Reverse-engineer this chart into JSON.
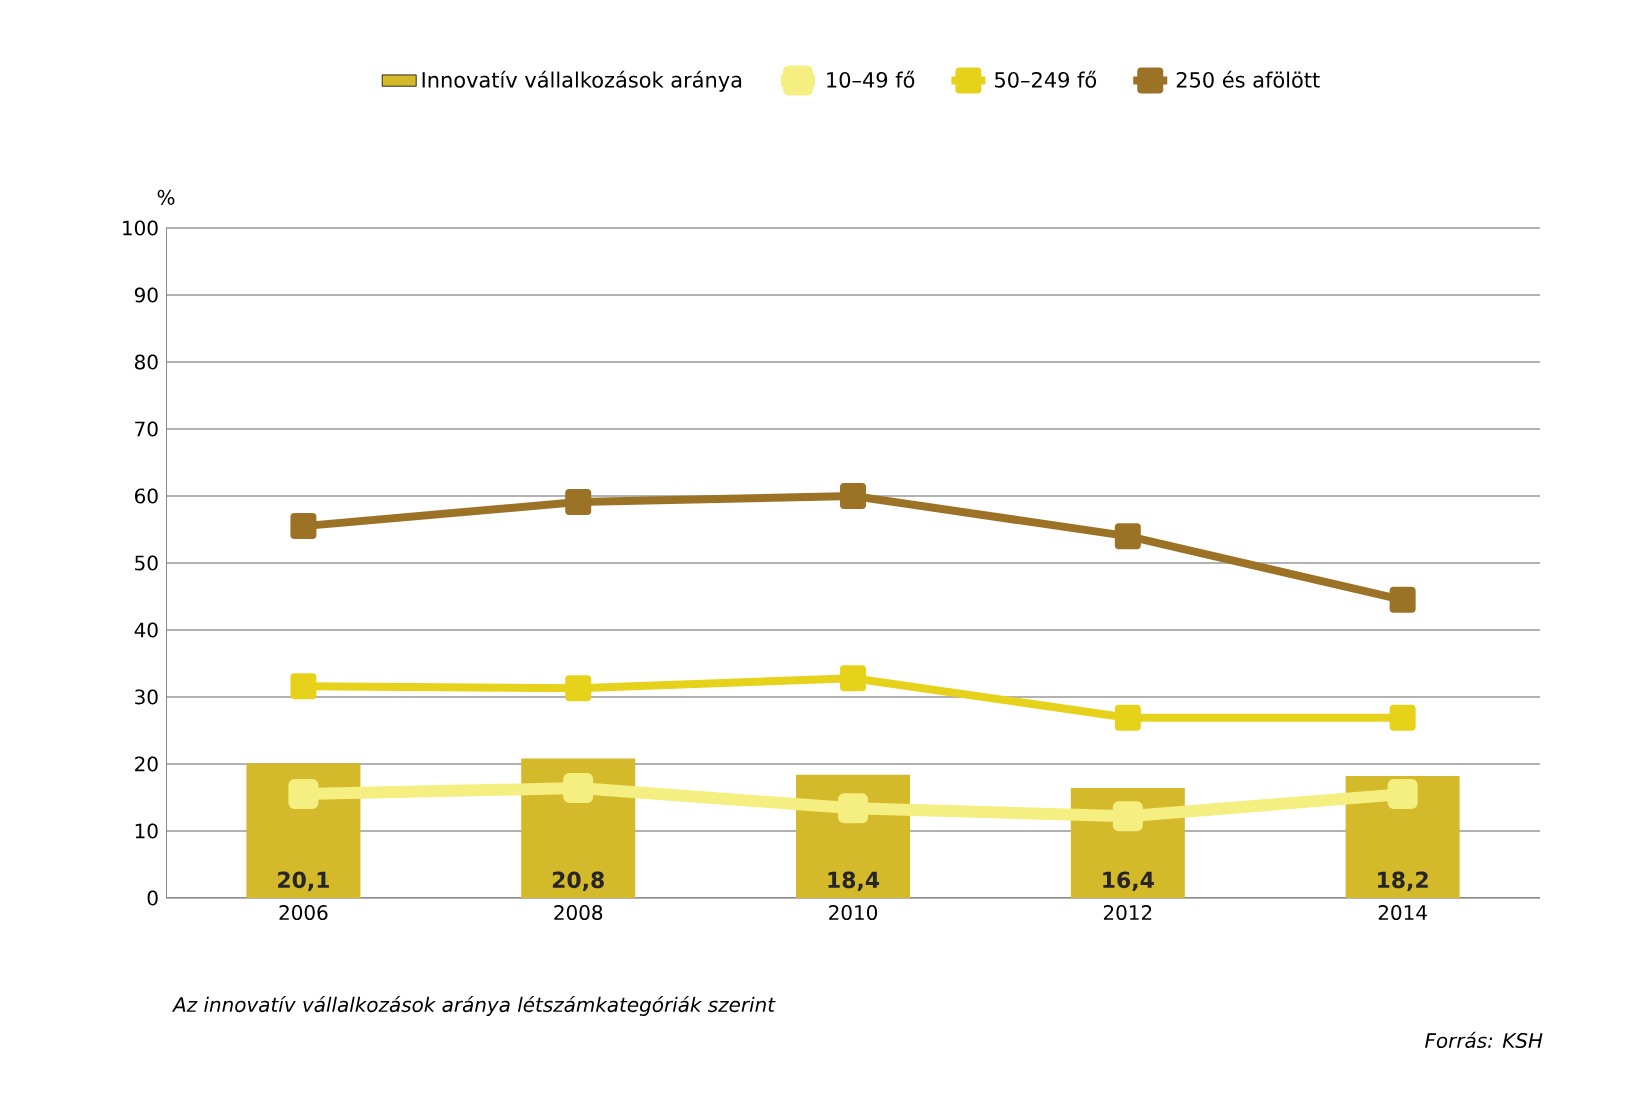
{
  "chart_data": {
    "type": "bar",
    "ylabel": "%",
    "categories": [
      "2006",
      "2008",
      "2010",
      "2012",
      "2014"
    ],
    "series": [
      {
        "name": "Innovatív vállalkozások aránya",
        "color": "#d4b92a",
        "values": [
          20.1,
          20.8,
          18.4,
          16.4,
          18.2
        ],
        "value_labels": [
          "20,1",
          "20,8",
          "18,4",
          "16,4",
          "18,2"
        ]
      },
      {
        "name": "10–49 fő",
        "type": "line",
        "marker": "square",
        "color": "#f5ee80",
        "values": [
          15.5,
          16.4,
          13.4,
          12.2,
          15.5
        ]
      },
      {
        "name": "50–249 fő",
        "type": "line",
        "marker": "square",
        "color": "#e6d21a",
        "values": [
          31.6,
          31.3,
          32.8,
          26.9,
          26.9
        ]
      },
      {
        "name": "250 és afölött",
        "type": "line",
        "marker": "square",
        "color": "#9c7226",
        "values": [
          55.5,
          59.1,
          60.0,
          54.0,
          44.5
        ]
      }
    ],
    "ylim": [
      0,
      100
    ],
    "yticks": [
      0,
      10,
      20,
      30,
      40,
      50,
      60,
      70,
      80,
      90,
      100
    ],
    "grid": "y",
    "legend": "top",
    "annotations": [
      "Az innovatív vállalkozások aránya létszámkategóriák szerint",
      "Forrás: KSH"
    ]
  }
}
